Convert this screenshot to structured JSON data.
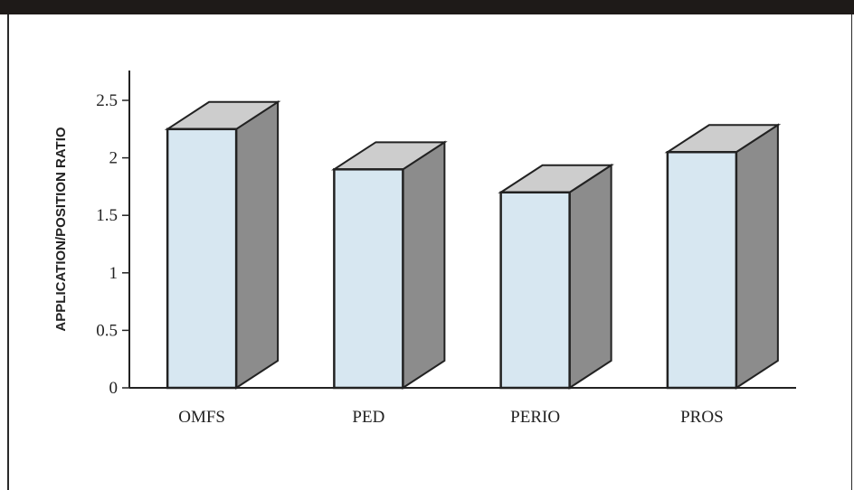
{
  "chart_data": {
    "type": "bar",
    "title": "",
    "xlabel": "",
    "ylabel": "APPLICATION/POSITION RATIO",
    "categories": [
      "OMFS",
      "PED",
      "PERIO",
      "PROS"
    ],
    "values": [
      2.25,
      1.9,
      1.7,
      2.05
    ],
    "ylim": [
      0,
      2.5
    ],
    "yticks": [
      0,
      0.5,
      1,
      1.5,
      2,
      2.5
    ],
    "ytick_labels": [
      "0",
      "0.5",
      "1",
      "1.5",
      "2",
      "2.5"
    ],
    "grid": false,
    "legend": "none",
    "style": "3d-column",
    "colors": {
      "bar_front": "#d7e7f1",
      "bar_top": "#cdcdcd",
      "bar_side": "#8c8c8c",
      "outline": "#222222"
    }
  }
}
